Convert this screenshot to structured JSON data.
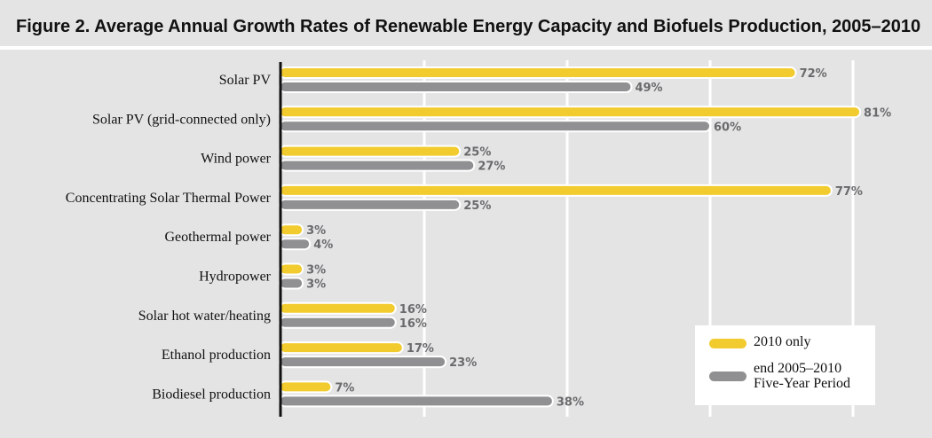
{
  "title": "Figure 2. Average Annual Growth Rates of Renewable Energy Capacity and Biofuels Production, 2005–2010",
  "colors": {
    "series_2010": "#f2cb2f",
    "series_5yr": "#909092",
    "gridline": "#ffffff",
    "axis": "#111111",
    "background": "#e4e4e5"
  },
  "chart_data": {
    "type": "bar",
    "orientation": "horizontal",
    "categories": [
      "Solar PV",
      "Solar PV (grid-connected only)",
      "Wind power",
      "Concentrating Solar Thermal Power",
      "Geothermal power",
      "Hydropower",
      "Solar hot water/heating",
      "Ethanol production",
      "Biodiesel production"
    ],
    "series": [
      {
        "name": "2010 only",
        "values": [
          72,
          81,
          25,
          77,
          3,
          3,
          16,
          17,
          7
        ]
      },
      {
        "name": "end 2005–2010 Five-Year Period",
        "values": [
          49,
          60,
          27,
          25,
          4,
          3,
          16,
          23,
          38
        ]
      }
    ],
    "value_suffix": "%",
    "xlim": [
      0,
      80
    ],
    "grid": true,
    "legend_position": "bottom-right",
    "title": "Figure 2. Average Annual Growth Rates of Renewable Energy Capacity and Biofuels Production, 2005–2010",
    "xlabel": "",
    "ylabel": ""
  },
  "legend": {
    "items": [
      {
        "label_lines": [
          "2010 only"
        ],
        "color_key": "series_2010"
      },
      {
        "label_lines": [
          "end 2005–2010",
          "Five-Year Period"
        ],
        "color_key": "series_5yr"
      }
    ]
  }
}
